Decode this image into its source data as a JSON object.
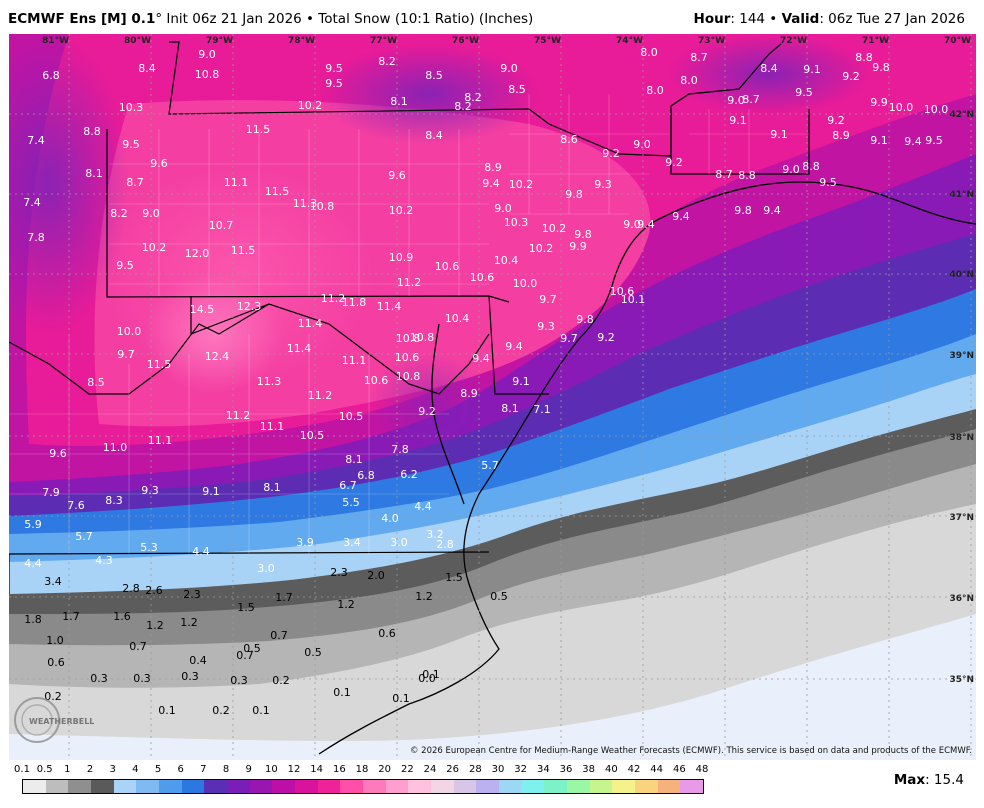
{
  "header": {
    "model": "ECMWF Ens [M] 0.1",
    "degree": "°",
    "init": "Init 06z 21 Jan 2026",
    "product": "• Total Snow (10:1 Ratio) (Inches)",
    "hour_label": "Hour",
    "hour_value": ": 144 •",
    "valid_label": "Valid",
    "valid_value": ": 06z Tue 27 Jan 2026"
  },
  "longitudes": [
    "81°W",
    "80°W",
    "79°W",
    "78°W",
    "77°W",
    "76°W",
    "75°W",
    "74°W",
    "73°W",
    "72°W",
    "71°W",
    "70°W"
  ],
  "latitudes": [
    "42°N",
    "41°N",
    "40°N",
    "39°N",
    "38°N",
    "37°N",
    "36°N",
    "35°N"
  ],
  "values": [
    "6.8",
    "9.0",
    "8.4",
    "10.8",
    "9.5",
    "9.5",
    "8.2",
    "8.5",
    "9.0",
    "8.0",
    "8.7",
    "8.4",
    "9.1",
    "8.8",
    "9.2",
    "9.8",
    "10.3",
    "10.2",
    "8.1",
    "8.2",
    "8.2",
    "8.5",
    "8.0",
    "8.0",
    "9.0",
    "8.7",
    "9.5",
    "9.9",
    "10.0",
    "10.0",
    "7.4",
    "8.8",
    "9.5",
    "11.5",
    "8.4",
    "8.6",
    "9.2",
    "9.0",
    "9.1",
    "9.1",
    "9.2",
    "8.9",
    "9.1",
    "9.4",
    "9.5",
    "8.1",
    "9.6",
    "8.7",
    "11.1",
    "11.5",
    "9.6",
    "8.9",
    "10.2",
    "9.8",
    "9.3",
    "9.2",
    "8.7",
    "8.8",
    "9.0",
    "8.8",
    "9.5",
    "7.4",
    "8.2",
    "9.0",
    "11.3",
    "10.8",
    "10.2",
    "9.4",
    "9.0",
    "9.4",
    "9.4",
    "9.8",
    "9.4",
    "7.8",
    "10.7",
    "10.3",
    "10.2",
    "9.8",
    "9.0",
    "10.2",
    "12.0",
    "11.5",
    "10.9",
    "10.6",
    "10.6",
    "10.4",
    "10.2",
    "9.9",
    "9.5",
    "11.2",
    "10.6",
    "10.0",
    "10.1",
    "10.8",
    "14.5",
    "12.3",
    "11.2",
    "11.8",
    "11.4",
    "9.7",
    "9.8",
    "10.4",
    "9.3",
    "9.7",
    "10.0",
    "11.4",
    "10.8",
    "9.2",
    "9.7",
    "11.5",
    "12.4",
    "11.4",
    "11.1",
    "10.6",
    "9.4",
    "9.4",
    "8.5",
    "10.8",
    "11.3",
    "10.6",
    "9.1",
    "11.2",
    "8.1",
    "7.1",
    "11.2",
    "10.5",
    "9.2",
    "8.9",
    "11.1",
    "10.5",
    "9.6",
    "11.0",
    "7.8",
    "8.1",
    "5.7",
    "11.1",
    "6.8",
    "6.2",
    "6.7",
    "7.9",
    "9.3",
    "9.1",
    "8.1",
    "5.5",
    "7.6",
    "8.3",
    "4.4",
    "4.0",
    "5.9",
    "3.2",
    "5.7",
    "3.9",
    "3.4",
    "3.0",
    "2.8",
    "5.3",
    "4.4",
    "4.4",
    "4.3",
    "3.0",
    "2.3",
    "2.0",
    "1.5",
    "3.4",
    "2.8",
    "2.6",
    "2.3",
    "1.7",
    "1.2",
    "0.5",
    "1.8",
    "1.7",
    "1.6",
    "1.5",
    "1.2",
    "1.2",
    "1.2",
    "0.7",
    "0.6",
    "1.0",
    "0.7",
    "0.7",
    "0.5",
    "0.5",
    "0.6",
    "0.4",
    "0.3",
    "0.3",
    "0.3",
    "0.3",
    "0.2",
    "0.2",
    "0.1",
    "0.0",
    "0.2",
    "0.1",
    "0.1",
    "0.1",
    "0.1"
  ],
  "credit": "© 2026 European Centre for Medium-Range Weather Forecasts (ECMWF). This service is based on data and products of the ECMWF.",
  "watermark": "WEATHERBELL",
  "scale": {
    "labels": [
      "0.1",
      "0.5",
      "1",
      "2",
      "3",
      "4",
      "5",
      "6",
      "7",
      "8",
      "9",
      "10",
      "12",
      "14",
      "16",
      "18",
      "20",
      "22",
      "24",
      "26",
      "28",
      "30",
      "32",
      "34",
      "36",
      "38",
      "40",
      "42",
      "44",
      "46",
      "48"
    ],
    "colors": [
      "#ececec",
      "#bdbdbd",
      "#8f8f8f",
      "#5a5a5a",
      "#a9d4f7",
      "#7fbaf2",
      "#4f9cec",
      "#2a78e0",
      "#5a2fb3",
      "#7a1eb8",
      "#9a16b0",
      "#bb0fa7",
      "#d9139c",
      "#f02297",
      "#ff4fa7",
      "#ff79bd",
      "#ff9fcf",
      "#ffc1de",
      "#f3d6e5",
      "#d8c6e6",
      "#bcb1f0",
      "#9cd8f4",
      "#7ef0ee",
      "#7df2c8",
      "#9af7a4",
      "#c6f58e",
      "#f4f28b",
      "#f9d37d",
      "#f7b27c",
      "#e89ae8"
    ]
  },
  "max": {
    "label": "Max",
    "value": ": 15.4"
  }
}
